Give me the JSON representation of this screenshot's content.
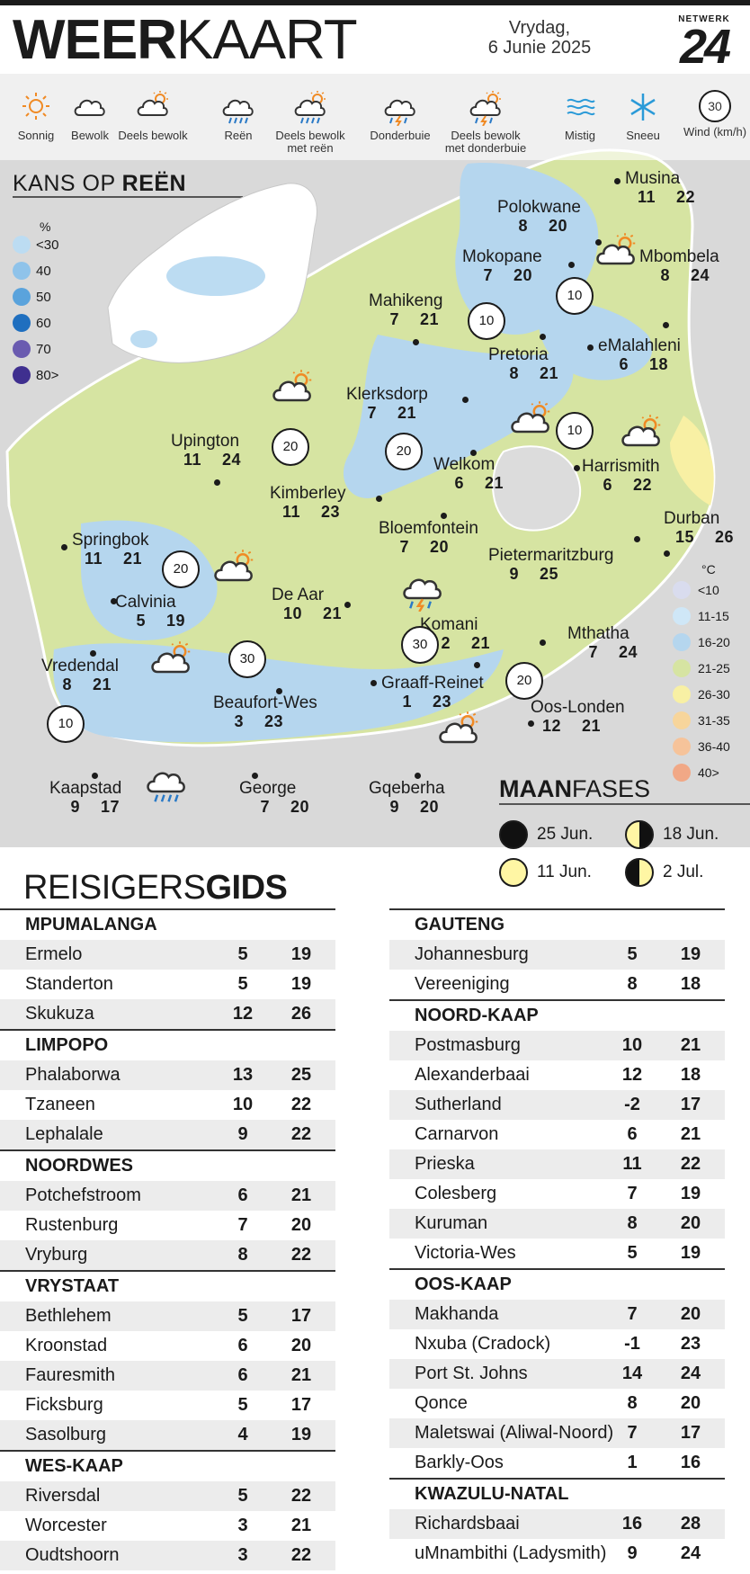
{
  "header": {
    "title_bold": "WEER",
    "title_light": "KAART",
    "day": "Vrydag,",
    "date": "6 Junie 2025",
    "logo_top": "NETWERK",
    "logo_num": "24"
  },
  "legend": [
    {
      "label": "Sonnig",
      "icon": "sun-icon"
    },
    {
      "label": "Bewolk",
      "icon": "cloud-icon"
    },
    {
      "label": "Deels bewolk",
      "icon": "partly-cloudy-icon"
    },
    {
      "label": "Reën",
      "icon": "rain-icon"
    },
    {
      "label": "Deels bewolk met reën",
      "icon": "partly-cloudy-rain-icon"
    },
    {
      "label": "Donderbuie",
      "icon": "thunderstorm-icon"
    },
    {
      "label": "Deels bewolk met donderbuie",
      "icon": "partly-cloudy-thunder-icon"
    },
    {
      "label": "Mistig",
      "icon": "fog-icon"
    },
    {
      "label": "Sneeu",
      "icon": "snow-icon"
    },
    {
      "label": "Wind (km/h)",
      "icon": "wind-icon",
      "value": "30"
    }
  ],
  "rain_chance": {
    "title_light": "KANS OP ",
    "title_bold": "REËN",
    "unit": "%",
    "scale": [
      {
        "label": "<30",
        "color": "#bcdcf2"
      },
      {
        "label": "40",
        "color": "#8fc3ea"
      },
      {
        "label": "50",
        "color": "#5aa3dc"
      },
      {
        "label": "60",
        "color": "#1f6fbf"
      },
      {
        "label": "70",
        "color": "#6a5bb0"
      },
      {
        "label": "80>",
        "color": "#3f2f8f"
      }
    ]
  },
  "cities": [
    {
      "name": "Musina",
      "min": "11",
      "max": "22"
    },
    {
      "name": "Polokwane",
      "min": "8",
      "max": "20"
    },
    {
      "name": "Mokopane",
      "min": "7",
      "max": "20"
    },
    {
      "name": "Mbombela",
      "min": "8",
      "max": "24"
    },
    {
      "name": "Mahikeng",
      "min": "7",
      "max": "21"
    },
    {
      "name": "Pretoria",
      "min": "8",
      "max": "21"
    },
    {
      "name": "eMalahleni",
      "min": "6",
      "max": "18"
    },
    {
      "name": "Klerksdorp",
      "min": "7",
      "max": "21"
    },
    {
      "name": "Upington",
      "min": "11",
      "max": "24"
    },
    {
      "name": "Welkom",
      "min": "6",
      "max": "21"
    },
    {
      "name": "Harrismith",
      "min": "6",
      "max": "22"
    },
    {
      "name": "Kimberley",
      "min": "11",
      "max": "23"
    },
    {
      "name": "Durban",
      "min": "15",
      "max": "26"
    },
    {
      "name": "Springbok",
      "min": "11",
      "max": "21"
    },
    {
      "name": "Bloemfontein",
      "min": "7",
      "max": "20"
    },
    {
      "name": "Pietermaritzburg",
      "min": "9",
      "max": "25"
    },
    {
      "name": "Calvinia",
      "min": "5",
      "max": "19"
    },
    {
      "name": "De Aar",
      "min": "10",
      "max": "21"
    },
    {
      "name": "Komani",
      "min": "2",
      "max": "21"
    },
    {
      "name": "Mthatha",
      "min": "7",
      "max": "24"
    },
    {
      "name": "Vredendal",
      "min": "8",
      "max": "21"
    },
    {
      "name": "Graaff-Reinet",
      "min": "1",
      "max": "23"
    },
    {
      "name": "Beaufort-Wes",
      "min": "3",
      "max": "23"
    },
    {
      "name": "Oos-Londen",
      "min": "12",
      "max": "21"
    },
    {
      "name": "Kaapstad",
      "min": "9",
      "max": "17"
    },
    {
      "name": "George",
      "min": "7",
      "max": "20"
    },
    {
      "name": "Gqeberha",
      "min": "9",
      "max": "20"
    }
  ],
  "wind_markers": [
    "10",
    "10",
    "20",
    "20",
    "10",
    "20",
    "30",
    "30",
    "20",
    "10"
  ],
  "temp_scale": {
    "unit": "°C",
    "items": [
      {
        "label": "<10",
        "color": "#d9dcee"
      },
      {
        "label": "11-15",
        "color": "#cfe7f7"
      },
      {
        "label": "16-20",
        "color": "#b5d6ee"
      },
      {
        "label": "21-25",
        "color": "#d6e4a2"
      },
      {
        "label": "26-30",
        "color": "#f8f0a4"
      },
      {
        "label": "31-35",
        "color": "#f7d59b"
      },
      {
        "label": "36-40",
        "color": "#f6c39a"
      },
      {
        "label": "40>",
        "color": "#f1a886"
      }
    ]
  },
  "moon_phases": {
    "title_bold": "MAAN",
    "title_light": "FASES",
    "items": [
      {
        "label": "25 Jun.",
        "phase": "new"
      },
      {
        "label": "18 Jun.",
        "phase": "last-quarter"
      },
      {
        "label": "11 Jun.",
        "phase": "full"
      },
      {
        "label": "2 Jul.",
        "phase": "first-quarter"
      }
    ]
  },
  "travel_guide": {
    "title_light": "REISIGERS",
    "title_bold": "GIDS",
    "left": [
      {
        "region": "MPUMALANGA",
        "rows": [
          [
            "Ermelo",
            "5",
            "19"
          ],
          [
            "Standerton",
            "5",
            "19"
          ],
          [
            "Skukuza",
            "12",
            "26"
          ]
        ]
      },
      {
        "region": "LIMPOPO",
        "rows": [
          [
            "Phalaborwa",
            "13",
            "25"
          ],
          [
            "Tzaneen",
            "10",
            "22"
          ],
          [
            "Lephalale",
            "9",
            "22"
          ]
        ]
      },
      {
        "region": "NOORDWES",
        "rows": [
          [
            "Potchefstroom",
            "6",
            "21"
          ],
          [
            "Rustenburg",
            "7",
            "20"
          ],
          [
            "Vryburg",
            "8",
            "22"
          ]
        ]
      },
      {
        "region": "VRYSTAAT",
        "rows": [
          [
            "Bethlehem",
            "5",
            "17"
          ],
          [
            "Kroonstad",
            "6",
            "20"
          ],
          [
            "Fauresmith",
            "6",
            "21"
          ],
          [
            "Ficksburg",
            "5",
            "17"
          ],
          [
            "Sasolburg",
            "4",
            "19"
          ]
        ]
      },
      {
        "region": "WES-KAAP",
        "rows": [
          [
            "Riversdal",
            "5",
            "22"
          ],
          [
            "Worcester",
            "3",
            "21"
          ],
          [
            "Oudtshoorn",
            "3",
            "22"
          ]
        ]
      }
    ],
    "right": [
      {
        "region": "GAUTENG",
        "rows": [
          [
            "Johannesburg",
            "5",
            "19"
          ],
          [
            "Vereeniging",
            "8",
            "18"
          ]
        ]
      },
      {
        "region": "NOORD-KAAP",
        "rows": [
          [
            "Postmasburg",
            "10",
            "21"
          ],
          [
            "Alexanderbaai",
            "12",
            "18"
          ],
          [
            "Sutherland",
            "-2",
            "17"
          ],
          [
            "Carnarvon",
            "6",
            "21"
          ],
          [
            "Prieska",
            "11",
            "22"
          ],
          [
            "Colesberg",
            "7",
            "19"
          ],
          [
            "Kuruman",
            "8",
            "20"
          ],
          [
            "Victoria-Wes",
            "5",
            "19"
          ]
        ]
      },
      {
        "region": "OOS-KAAP",
        "rows": [
          [
            "Makhanda",
            "7",
            "20"
          ],
          [
            "Nxuba (Cradock)",
            "-1",
            "23"
          ],
          [
            "Port St. Johns",
            "14",
            "24"
          ],
          [
            "Qonce",
            "8",
            "20"
          ],
          [
            "Maletswai (Aliwal-Noord)",
            "7",
            "17"
          ],
          [
            "Barkly-Oos",
            "1",
            "16"
          ]
        ]
      },
      {
        "region": "KWAZULU-NATAL",
        "rows": [
          [
            "Richardsbaai",
            "16",
            "28"
          ],
          [
            "uMnambithi (Ladysmith)",
            "9",
            "24"
          ]
        ]
      }
    ]
  }
}
